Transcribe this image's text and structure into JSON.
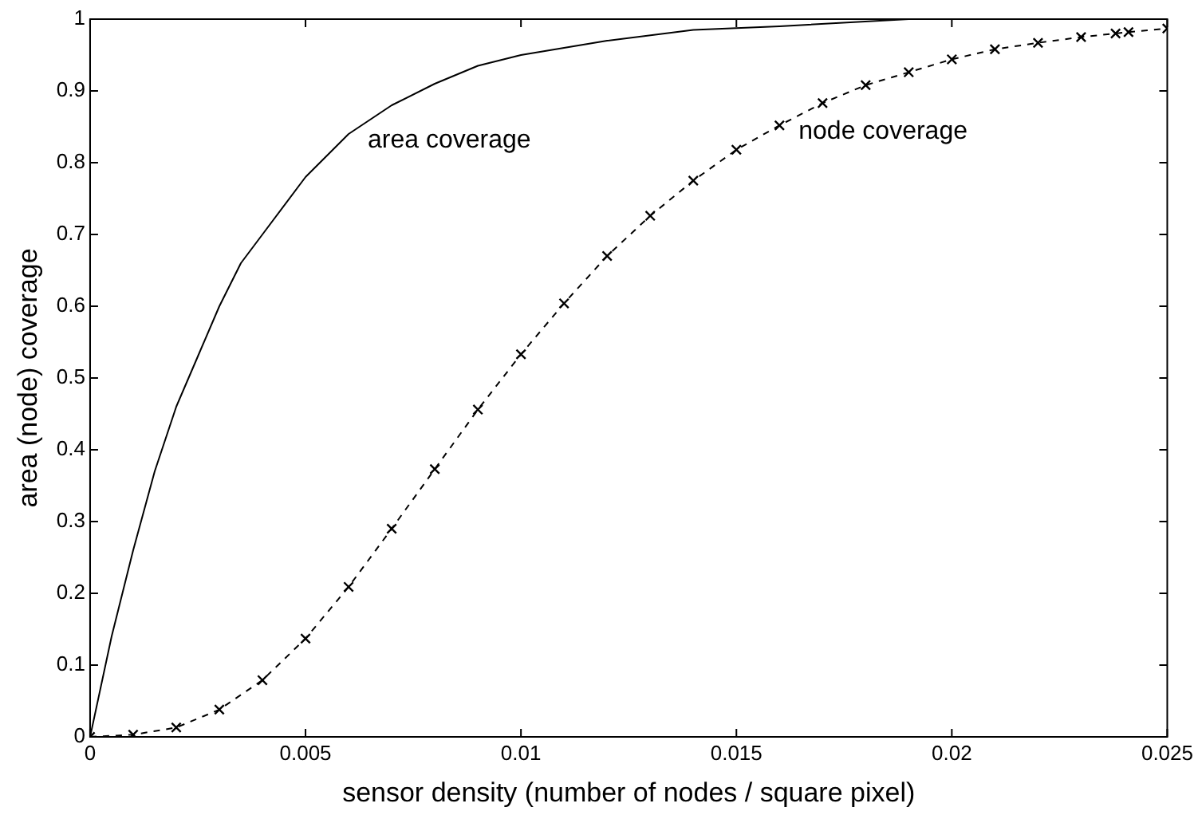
{
  "chart_data": {
    "type": "line",
    "xlabel": "sensor density (number of nodes / square pixel)",
    "ylabel": "area (node) coverage",
    "xlim": [
      0,
      0.025
    ],
    "ylim": [
      0,
      1
    ],
    "xticks": [
      0,
      0.005,
      0.01,
      0.015,
      0.02,
      0.025
    ],
    "yticks": [
      0,
      0.1,
      0.2,
      0.3,
      0.4,
      0.5,
      0.6,
      0.7,
      0.8,
      0.9,
      1
    ],
    "grid": false,
    "legend": false,
    "series": [
      {
        "name": "area coverage",
        "color": "#000000",
        "marker": "none",
        "line_style": "solid",
        "x": [
          0,
          0.0005,
          0.001,
          0.0015,
          0.002,
          0.0025,
          0.003,
          0.0035,
          0.004,
          0.005,
          0.006,
          0.007,
          0.008,
          0.009,
          0.01,
          0.012,
          0.014,
          0.016,
          0.019,
          0.025
        ],
        "values": [
          0,
          0.14,
          0.26,
          0.37,
          0.46,
          0.53,
          0.6,
          0.66,
          0.7,
          0.78,
          0.84,
          0.88,
          0.91,
          0.935,
          0.95,
          0.97,
          0.985,
          0.99,
          1,
          1
        ]
      },
      {
        "name": "node coverage",
        "color": "#000000",
        "marker": "cross",
        "line_style": "dashed",
        "x": [
          0,
          0.001,
          0.002,
          0.003,
          0.004,
          0.005,
          0.006,
          0.007,
          0.008,
          0.009,
          0.01,
          0.011,
          0.012,
          0.013,
          0.014,
          0.015,
          0.016,
          0.017,
          0.018,
          0.019,
          0.02,
          0.021,
          0.022,
          0.023,
          0.0238,
          0.0241,
          0.025
        ],
        "values": [
          0,
          0.003,
          0.013,
          0.038,
          0.079,
          0.137,
          0.209,
          0.29,
          0.373,
          0.456,
          0.533,
          0.604,
          0.67,
          0.726,
          0.775,
          0.818,
          0.852,
          0.883,
          0.908,
          0.926,
          0.944,
          0.958,
          0.967,
          0.975,
          0.98,
          0.982,
          0.987
        ]
      }
    ]
  }
}
